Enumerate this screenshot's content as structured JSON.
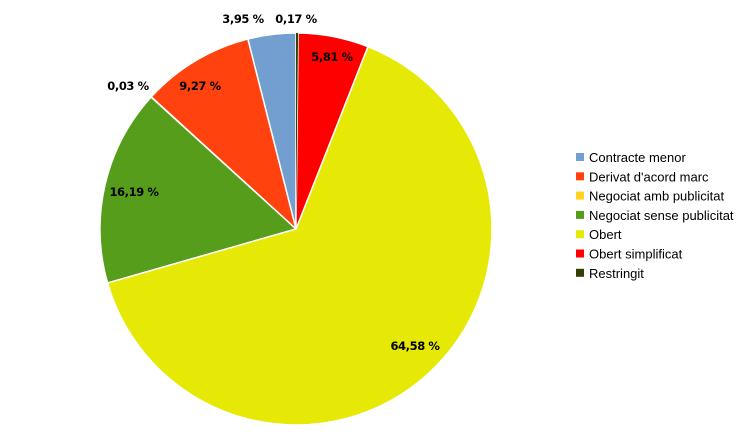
{
  "chart_data": {
    "type": "pie",
    "title": "",
    "legend_position": "right",
    "slices": [
      {
        "label": "Contracte menor",
        "value": 3.95,
        "value_label": "3,95 %",
        "color": "#729fcf"
      },
      {
        "label": "Derivat d'acord marc",
        "value": 9.27,
        "value_label": "9,27 %",
        "color": "#ff420e"
      },
      {
        "label": "Negociat amb publicitat",
        "value": 0.03,
        "value_label": "0,03 %",
        "color": "#ffd320"
      },
      {
        "label": "Negociat sense publicitat",
        "value": 16.19,
        "value_label": "16,19 %",
        "color": "#579d1c"
      },
      {
        "label": "Obert",
        "value": 64.58,
        "value_label": "64,58 %",
        "color": "#e6e905"
      },
      {
        "label": "Obert simplificat",
        "value": 5.81,
        "value_label": "5,81 %",
        "color": "#ff0000"
      },
      {
        "label": "Restringit",
        "value": 0.17,
        "value_label": "0,17 %",
        "color": "#314004"
      }
    ]
  }
}
